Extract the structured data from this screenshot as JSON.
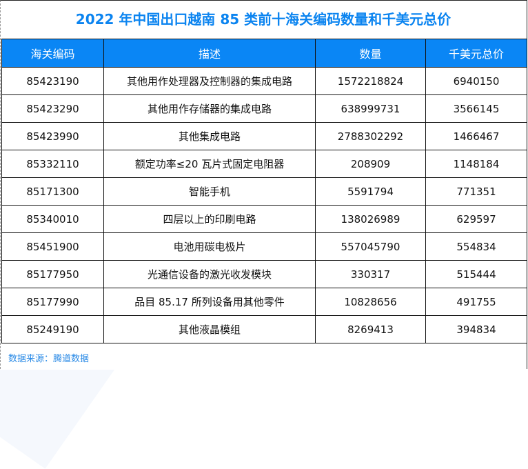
{
  "title": "2022 年中国出口越南 85 类前十海关编码数量和千美元总价",
  "headers": [
    "海关编码",
    "描述",
    "数量",
    "千美元总价"
  ],
  "rows": [
    [
      "85423190",
      "其他用作处理器及控制器的集成电路",
      "1572218824",
      "6940150"
    ],
    [
      "85423290",
      "其他用作存储器的集成电路",
      "638999731",
      "3566145"
    ],
    [
      "85423990",
      "其他集成电路",
      "2788302292",
      "1466467"
    ],
    [
      "85332110",
      "额定功率≤20 瓦片式固定电阻器",
      "208909",
      "1148184"
    ],
    [
      "85171300",
      "智能手机",
      "5591794",
      "771351"
    ],
    [
      "85340010",
      "四层以上的印刷电路",
      "138026989",
      "629597"
    ],
    [
      "85451900",
      "电池用碳电极片",
      "557045790",
      "554834"
    ],
    [
      "85177950",
      "光通信设备的激光收发模块",
      "330317",
      "515444"
    ],
    [
      "85177990",
      "品目 85.17 所列设备用其他零件",
      "10828656",
      "491755"
    ],
    [
      "85249190",
      "其他液晶模组",
      "8269413",
      "394834"
    ]
  ],
  "footer": "数据来源：腾道数据",
  "colors": {
    "accent": "#0a86f5",
    "title": "#0b84f0"
  }
}
